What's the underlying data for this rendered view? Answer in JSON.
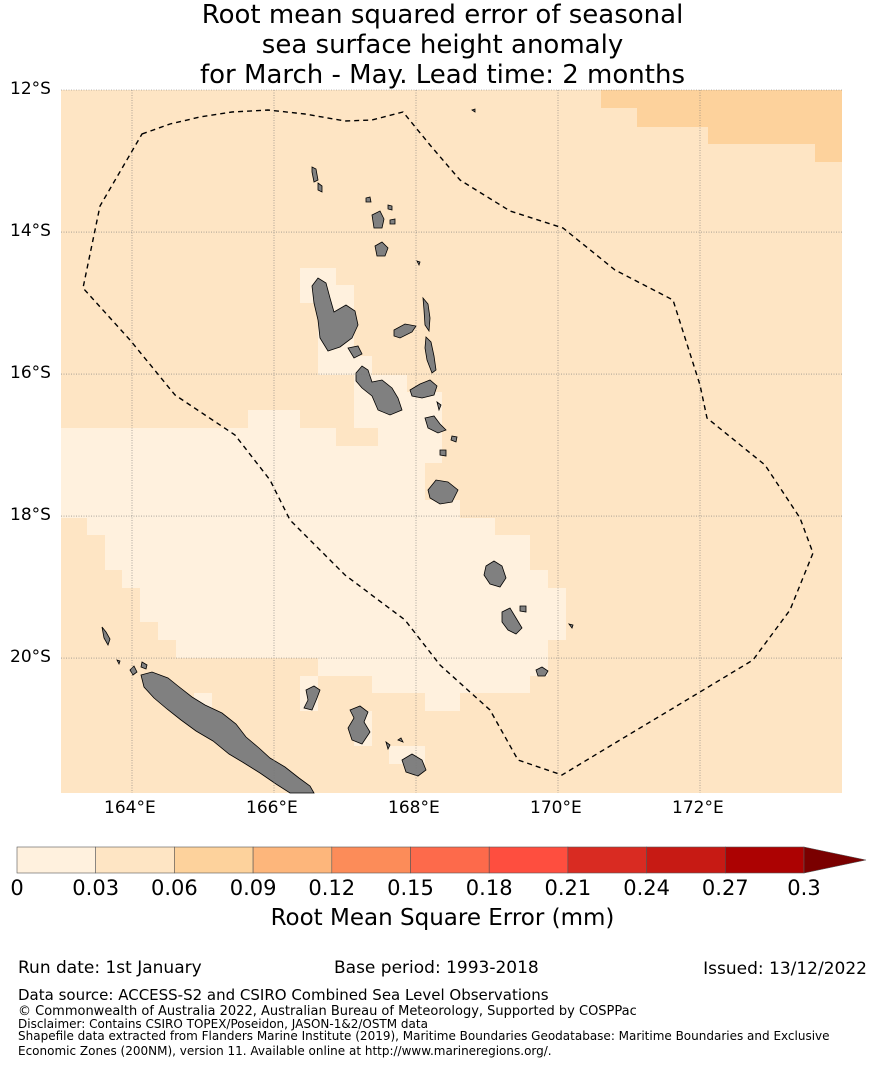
{
  "title": {
    "line1": "Root mean squared error of seasonal",
    "line2": "sea surface height anomaly",
    "line3": "for March - May. Lead time: 2 months"
  },
  "map": {
    "lon_range": [
      163,
      174
    ],
    "lat_range": [
      -21.9,
      -12
    ],
    "lat_ticks": [
      "12°S",
      "14°S",
      "16°S",
      "18°S",
      "20°S"
    ],
    "lon_ticks": [
      "164°E",
      "166°E",
      "168°E",
      "170°E",
      "172°E"
    ],
    "colors": {
      "bin_0_003": "#fff1de",
      "bin_003_006": "#fee5c4",
      "bin_006_009": "#fdd29c",
      "land": "#808080",
      "grid": "#777777",
      "eez_boundary": "#000000"
    }
  },
  "colorbar": {
    "ticks": [
      "0",
      "0.03",
      "0.06",
      "0.09",
      "0.12",
      "0.15",
      "0.18",
      "0.21",
      "0.24",
      "0.27",
      "0.3"
    ],
    "colors": [
      "#fff1de",
      "#fee5c4",
      "#fdd29c",
      "#fdb67b",
      "#fc8c59",
      "#fd6a4b",
      "#fe4e3f",
      "#d92b22",
      "#c71a14",
      "#ac0202",
      "#7a0000"
    ],
    "label": "Root Mean Square Error (mm)"
  },
  "footer": {
    "run_date": "Run date: 1st January",
    "base_period": "Base period: 1993-2018",
    "issued": "Issued: 13/12/2022",
    "data_source": "Data source: ACCESS-S2 and CSIRO Combined Sea Level Observations",
    "copyright": "© Commonwealth of Australia 2022, Australian Bureau of Meteorology, Supported by COSPPac",
    "disclaimer": "Disclaimer: Contains CSIRO TOPEX/Poseidon, JASON-1&2/OSTM data",
    "shapefile": "Shapefile data extracted from Flanders Marine Institute (2019), Maritime Boundaries Geodatabase: Maritime Boundaries and Exclusive Economic Zones (200NM), version 11. Available online at http://www.marineregions.org/."
  }
}
